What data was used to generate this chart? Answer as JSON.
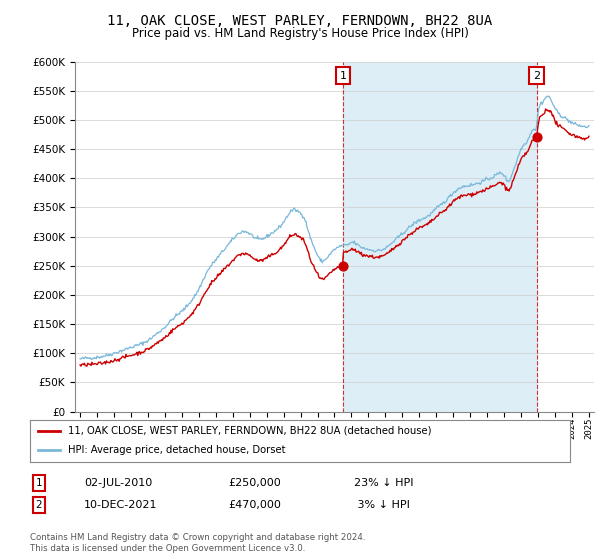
{
  "title": "11, OAK CLOSE, WEST PARLEY, FERNDOWN, BH22 8UA",
  "subtitle": "Price paid vs. HM Land Registry's House Price Index (HPI)",
  "sale1_date": "02-JUL-2010",
  "sale1_price": 250000,
  "sale1_year": 2010.5,
  "sale2_date": "10-DEC-2021",
  "sale2_price": 470000,
  "sale2_year": 2021.92,
  "legend1": "11, OAK CLOSE, WEST PARLEY, FERNDOWN, BH22 8UA (detached house)",
  "legend2": "HPI: Average price, detached house, Dorset",
  "footer": "Contains HM Land Registry data © Crown copyright and database right 2024.\nThis data is licensed under the Open Government Licence v3.0.",
  "hpi_color": "#7ab8d9",
  "hpi_fill": "#ddeef7",
  "sale_color": "#cc0000",
  "vline_color": "#cc0000",
  "ylim_min": 0,
  "ylim_max": 600000,
  "background_color": "#ffffff",
  "title_fontsize": 10,
  "subtitle_fontsize": 8.5
}
